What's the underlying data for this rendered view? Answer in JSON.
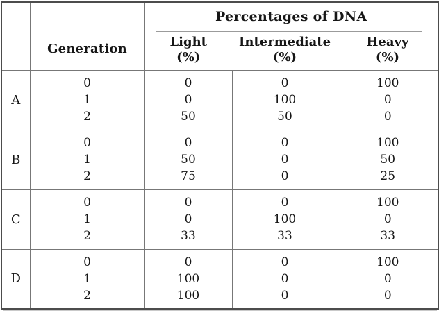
{
  "table": {
    "header": {
      "corner": "",
      "generation": "Generation",
      "dna_title": "Percentages of DNA",
      "columns": [
        {
          "label": "Light",
          "unit": "(%)"
        },
        {
          "label": "Intermediate",
          "unit": "(%)"
        },
        {
          "label": "Heavy",
          "unit": "(%)"
        }
      ]
    },
    "groups": [
      {
        "label": "A",
        "rows": [
          {
            "generation": "0",
            "light": "0",
            "intermediate": "0",
            "heavy": "100"
          },
          {
            "generation": "1",
            "light": "0",
            "intermediate": "100",
            "heavy": "0"
          },
          {
            "generation": "2",
            "light": "50",
            "intermediate": "50",
            "heavy": "0"
          }
        ]
      },
      {
        "label": "B",
        "rows": [
          {
            "generation": "0",
            "light": "0",
            "intermediate": "0",
            "heavy": "100"
          },
          {
            "generation": "1",
            "light": "50",
            "intermediate": "0",
            "heavy": "50"
          },
          {
            "generation": "2",
            "light": "75",
            "intermediate": "0",
            "heavy": "25"
          }
        ]
      },
      {
        "label": "C",
        "rows": [
          {
            "generation": "0",
            "light": "0",
            "intermediate": "0",
            "heavy": "100"
          },
          {
            "generation": "1",
            "light": "0",
            "intermediate": "100",
            "heavy": "0"
          },
          {
            "generation": "2",
            "light": "33",
            "intermediate": "33",
            "heavy": "33"
          }
        ]
      },
      {
        "label": "D",
        "rows": [
          {
            "generation": "0",
            "light": "0",
            "intermediate": "0",
            "heavy": "100"
          },
          {
            "generation": "1",
            "light": "100",
            "intermediate": "0",
            "heavy": "0"
          },
          {
            "generation": "2",
            "light": "100",
            "intermediate": "0",
            "heavy": "0"
          }
        ]
      }
    ]
  }
}
